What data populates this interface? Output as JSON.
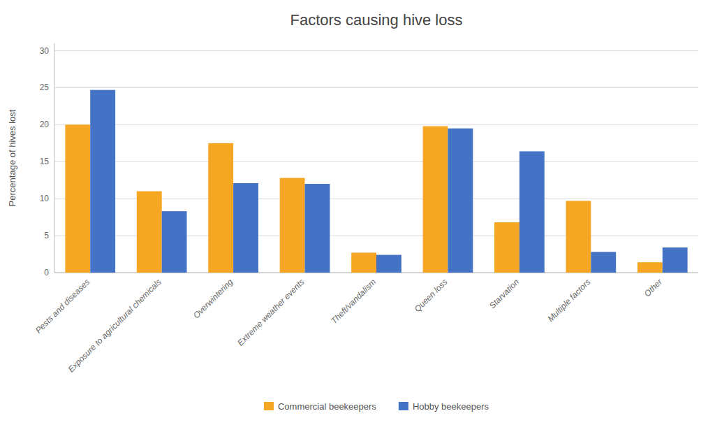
{
  "chart_data": {
    "type": "bar",
    "title": "Factors causing hive loss",
    "ylabel": "Percentage of hives lost",
    "categories": [
      "Pests and diseases",
      "Exposure to agricultural chemicals",
      "Overwintering",
      "Extreme weather events",
      "Theft/vandalism",
      "Queen loss",
      "Starvation",
      "Multiple factors",
      "Other"
    ],
    "series": [
      {
        "name": "Commercial beekeepers",
        "color": "#F5A623",
        "values": [
          20.0,
          11.0,
          17.5,
          12.8,
          2.7,
          19.8,
          6.8,
          9.7,
          1.4
        ]
      },
      {
        "name": "Hobby beekeepers",
        "color": "#4472C4",
        "values": [
          24.7,
          8.3,
          12.1,
          12.0,
          2.4,
          19.5,
          16.4,
          2.8,
          3.4
        ]
      }
    ],
    "ylim": [
      0,
      31
    ],
    "yticks": [
      0,
      5,
      10,
      15,
      20,
      25,
      30
    ],
    "grid": true,
    "legend": "bottom"
  }
}
